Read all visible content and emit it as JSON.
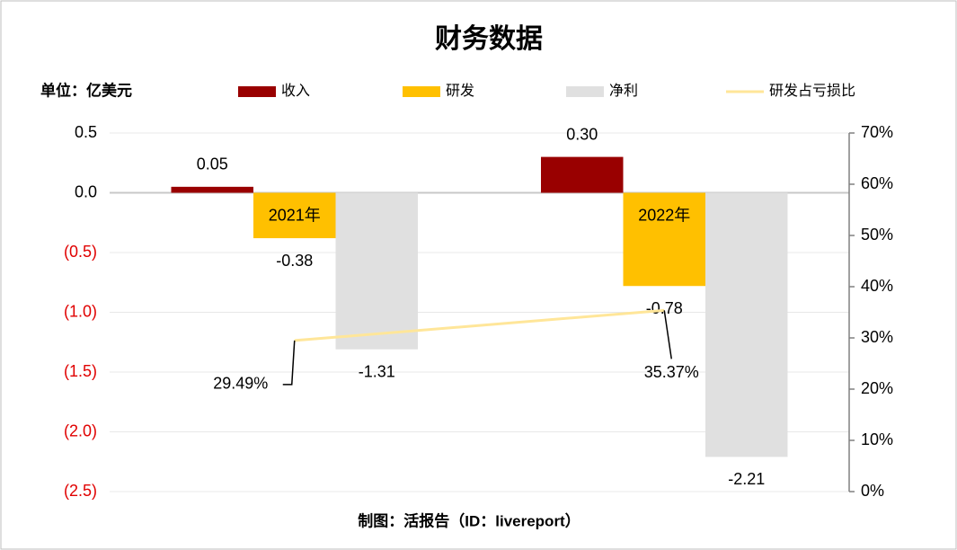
{
  "chart_data": {
    "type": "bar",
    "title": "财务数据",
    "unit_label": "单位：亿美元",
    "footer": "制图：活报告（ID：livereport）",
    "categories": [
      "2021年",
      "2022年"
    ],
    "series": [
      {
        "name": "收入",
        "color": "#990000",
        "values": [
          0.05,
          0.3
        ],
        "value_labels": [
          "0.05",
          "0.30"
        ]
      },
      {
        "name": "研发",
        "color": "#ffc000",
        "values": [
          -0.38,
          -0.78
        ]
      },
      {
        "name": "净利",
        "color": "#e0e0e0",
        "values": [
          -1.31,
          -2.21
        ]
      },
      {
        "name": "研发占亏损比",
        "type": "line",
        "axis": "y2",
        "color": "#ffe699",
        "values": [
          29.49,
          35.37
        ],
        "value_labels": [
          "29.49%",
          "35.37%"
        ]
      }
    ],
    "ylim": [
      -2.5,
      0.5
    ],
    "yticks": [
      0.5,
      {
        "value": 0,
        "label": "0.0"
      },
      {
        "value": -0.5,
        "label": "(0.5)"
      },
      {
        "value": -1,
        "label": "(1.0)"
      },
      {
        "value": -1.5,
        "label": "(1.5)"
      },
      {
        "value": -2,
        "label": "(2.0)"
      },
      {
        "value": -2.5,
        "label": "(2.5)"
      }
    ],
    "y2lim": [
      0,
      70
    ],
    "y2ticks": [
      {
        "value": 0,
        "label": "0%"
      },
      {
        "value": 10,
        "label": "10%"
      },
      {
        "value": 20,
        "label": "20%"
      },
      {
        "value": 30,
        "label": "30%"
      },
      {
        "value": 40,
        "label": "40%"
      },
      {
        "value": 50,
        "label": "50%"
      },
      {
        "value": 60,
        "label": "60%"
      },
      {
        "value": 70,
        "label": "70%"
      }
    ],
    "grid": true,
    "legend": "top"
  }
}
